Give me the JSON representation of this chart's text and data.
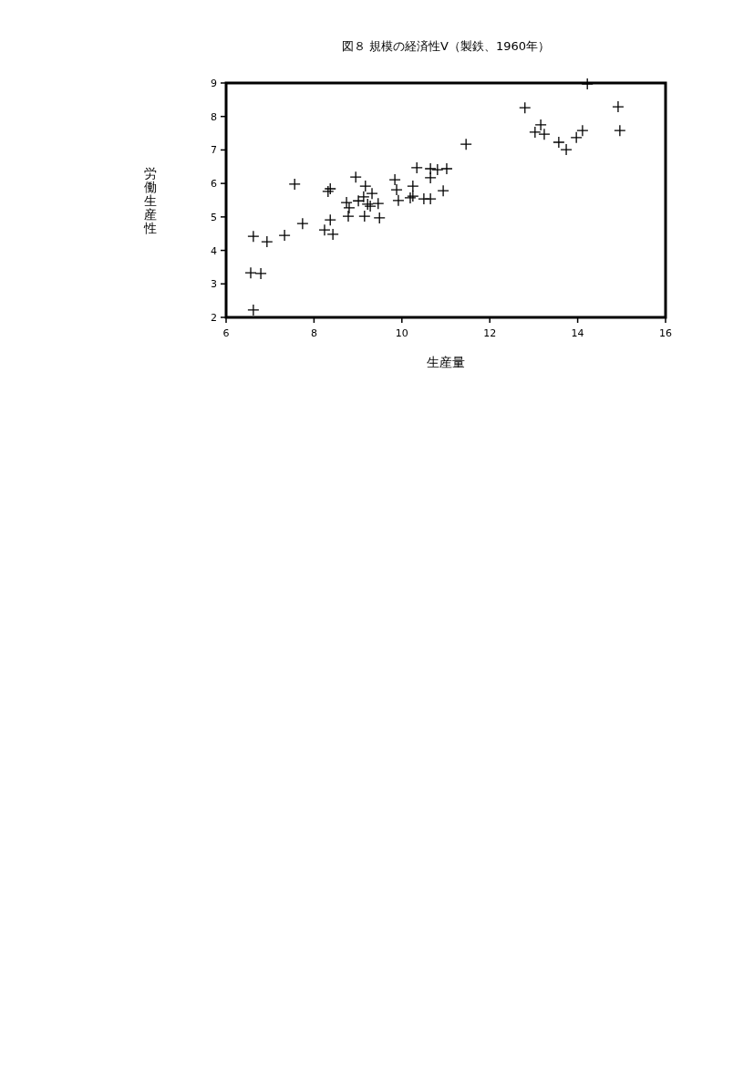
{
  "chart_data": {
    "type": "scatter",
    "title": "図８ 規模の経済性Ⅴ（製鉄、1960年）",
    "xlabel": "生産量",
    "ylabel": "労働生産性",
    "marker": "cross",
    "xlim": [
      6,
      16
    ],
    "ylim": [
      2,
      9
    ],
    "xticks": [
      6,
      8,
      10,
      12,
      14,
      16
    ],
    "yticks": [
      2,
      3,
      4,
      5,
      6,
      7,
      8,
      9
    ],
    "series": [
      {
        "color": "#000000",
        "x": [
          6.56,
          6.79,
          6.62,
          6.62,
          6.93,
          7.33,
          7.56,
          7.74,
          8.24,
          8.32,
          8.37,
          8.37,
          8.43,
          8.74,
          8.8,
          8.78,
          8.95,
          9.01,
          9.13,
          9.17,
          9.15,
          9.22,
          9.28,
          9.32,
          9.46,
          9.49,
          9.84,
          9.88,
          9.92,
          10.19,
          10.25,
          10.25,
          10.34,
          10.5,
          10.65,
          10.65,
          10.65,
          10.81,
          11.02,
          10.94,
          11.46,
          12.8,
          13.03,
          13.16,
          13.24,
          13.57,
          13.74,
          13.97,
          14.11,
          14.22,
          14.92,
          14.96
        ],
        "values": [
          3.33,
          3.31,
          2.22,
          4.42,
          4.26,
          4.45,
          5.98,
          4.8,
          4.61,
          5.76,
          5.84,
          4.91,
          4.48,
          5.43,
          5.27,
          5.02,
          6.19,
          5.48,
          5.6,
          5.92,
          5.02,
          5.38,
          5.32,
          5.7,
          5.4,
          4.97,
          6.11,
          5.81,
          5.49,
          5.57,
          5.62,
          5.92,
          6.47,
          5.54,
          5.54,
          6.17,
          6.44,
          6.41,
          6.44,
          5.78,
          7.17,
          8.26,
          7.53,
          7.75,
          7.47,
          7.23,
          7.01,
          7.37,
          7.58,
          8.97,
          8.29,
          7.58
        ]
      }
    ]
  }
}
